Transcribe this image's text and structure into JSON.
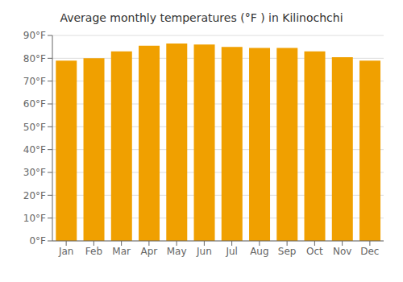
{
  "chart_data": {
    "type": "bar",
    "title": "Average monthly temperatures (°F ) in Kilinochchi",
    "categories": [
      "Jan",
      "Feb",
      "Mar",
      "Apr",
      "May",
      "Jun",
      "Jul",
      "Aug",
      "Sep",
      "Oct",
      "Nov",
      "Dec"
    ],
    "values": [
      79,
      80,
      83,
      85.5,
      86.5,
      86,
      85,
      84.5,
      84.5,
      83,
      80.5,
      79
    ],
    "color": "#F0A000",
    "ylim": [
      0,
      90
    ],
    "yticks": [
      {
        "value": 0,
        "label": "0°F"
      },
      {
        "value": 10,
        "label": "10°F"
      },
      {
        "value": 20,
        "label": "20°F"
      },
      {
        "value": 30,
        "label": "30°F"
      },
      {
        "value": 40,
        "label": "40°F"
      },
      {
        "value": 50,
        "label": "50°F"
      },
      {
        "value": 60,
        "label": "60°F"
      },
      {
        "value": 70,
        "label": "70°F"
      },
      {
        "value": 80,
        "label": "80°F"
      },
      {
        "value": 90,
        "label": "90°F"
      }
    ],
    "grid": true
  }
}
